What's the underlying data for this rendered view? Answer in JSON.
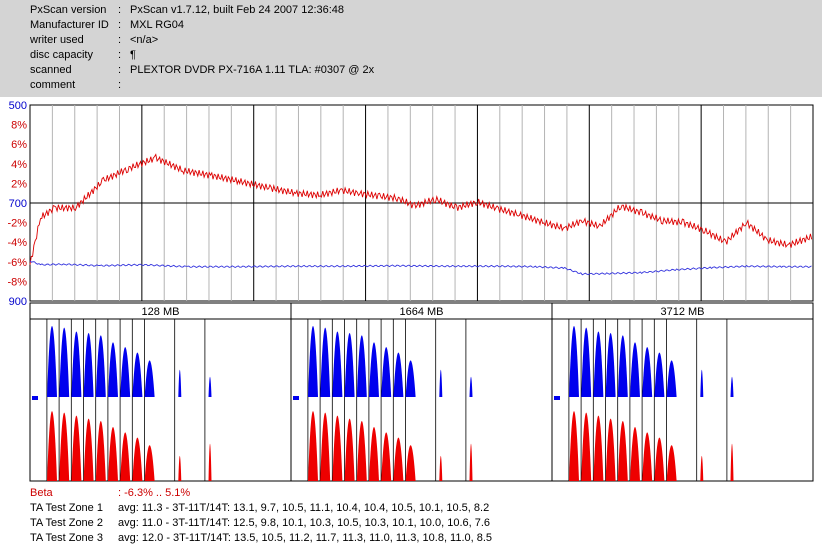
{
  "header": {
    "rows": [
      {
        "key": "PxScan version",
        "value": "PxScan v1.7.12, built Feb 24 2007 12:36:48"
      },
      {
        "key": "Manufacturer ID",
        "value": "MXL RG04"
      },
      {
        "key": "writer used",
        "value": "<n/a>"
      },
      {
        "key": "disc capacity",
        "value": "¶"
      },
      {
        "key": "scanned",
        "value": "PLEXTOR DVDR PX-716A 1.11 TLA: #0307 @ 2x"
      },
      {
        "key": "comment",
        "value": ""
      }
    ],
    "separator": ":"
  },
  "chart_data": [
    {
      "type": "line",
      "y_left_ticks": [
        {
          "label": "500",
          "color": "#0000cc"
        },
        {
          "label": "8%",
          "color": "#cc0000"
        },
        {
          "label": "6%",
          "color": "#cc0000"
        },
        {
          "label": "4%",
          "color": "#cc0000"
        },
        {
          "label": "2%",
          "color": "#cc0000"
        },
        {
          "label": "700",
          "color": "#0000cc"
        },
        {
          "label": "-2%",
          "color": "#cc0000"
        },
        {
          "label": "-4%",
          "color": "#cc0000"
        },
        {
          "label": "-6%",
          "color": "#cc0000"
        },
        {
          "label": "-8%",
          "color": "#cc0000"
        },
        {
          "label": "900",
          "color": "#0000cc"
        }
      ],
      "beta_ylim": [
        -10,
        10
      ],
      "jitter_ylim": [
        500,
        900
      ],
      "x_range": [
        0,
        4480
      ],
      "series": [
        {
          "color": "#dd0000",
          "x": [
            0,
            60,
            140,
            260,
            420,
            560,
            720,
            880,
            1040,
            1200,
            1380,
            1520,
            1660,
            1780,
            1880,
            2000,
            2100,
            2200,
            2320,
            2440,
            2560,
            2680,
            2800,
            2940,
            3060,
            3160,
            3260,
            3380,
            3500,
            3620,
            3740,
            3860,
            3980,
            4100,
            4220,
            4340,
            4480
          ],
          "y": [
            -6.3,
            -1.5,
            -0.5,
            -0.5,
            2.3,
            3.5,
            4.6,
            3.3,
            2.8,
            2.2,
            1.5,
            1.0,
            0.8,
            1.3,
            1.0,
            0.7,
            0.5,
            -0.3,
            0.4,
            -0.5,
            0.1,
            -0.6,
            -1.2,
            -2.0,
            -2.6,
            -1.8,
            -2.4,
            -0.3,
            -1.0,
            -1.8,
            -2.0,
            -2.8,
            -4.0,
            -2.0,
            -3.8,
            -4.3,
            -3.4
          ]
        },
        {
          "color": "#3333dd",
          "x": [
            0,
            60,
            200,
            400,
            640,
            900,
            1200,
            1500,
            1800,
            2100,
            2400,
            2700,
            2900,
            3060,
            3160,
            3300,
            3500,
            3700,
            3900,
            4100,
            4300,
            4480
          ],
          "y": [
            818,
            826,
            825,
            828,
            826,
            830,
            830,
            829,
            829,
            828,
            829,
            829,
            830,
            833,
            845,
            844,
            842,
            836,
            832,
            829,
            830,
            830
          ]
        }
      ]
    },
    {
      "type": "bar",
      "zones": [
        {
          "label": "128 MB",
          "blue_peaks": [
            0.91,
            0.89,
            0.84,
            0.82,
            0.79,
            0.7,
            0.64,
            0.57,
            0.47,
            0.35,
            0.26
          ],
          "red_peaks": [
            0.92,
            0.9,
            0.86,
            0.82,
            0.79,
            0.71,
            0.64,
            0.57,
            0.47,
            0.33,
            0.49
          ]
        },
        {
          "label": "1664 MB",
          "blue_peaks": [
            0.91,
            0.89,
            0.84,
            0.82,
            0.79,
            0.7,
            0.64,
            0.57,
            0.47,
            0.35,
            0.26
          ],
          "red_peaks": [
            0.92,
            0.9,
            0.86,
            0.82,
            0.79,
            0.71,
            0.64,
            0.57,
            0.47,
            0.33,
            0.49
          ]
        },
        {
          "label": "3712 MB",
          "blue_peaks": [
            0.91,
            0.89,
            0.84,
            0.82,
            0.79,
            0.7,
            0.64,
            0.57,
            0.47,
            0.35,
            0.26
          ],
          "red_peaks": [
            0.92,
            0.9,
            0.86,
            0.82,
            0.79,
            0.71,
            0.64,
            0.57,
            0.47,
            0.33,
            0.49
          ]
        }
      ]
    }
  ],
  "summary": {
    "beta": {
      "label": "Beta",
      "value": ": -6.3% .. 5.1%"
    },
    "zones": [
      {
        "label": "TA Test Zone 1",
        "value": "avg: 11.3 - 3T-11T/14T: 13.1, 9.7, 10.5, 11.1, 10.4, 10.4, 10.5, 10.1, 10.5, 8.2"
      },
      {
        "label": "TA Test Zone 2",
        "value": "avg: 11.0 - 3T-11T/14T: 12.5, 9.8, 10.1, 10.3, 10.5, 10.3, 10.1, 10.0, 10.6, 7.6"
      },
      {
        "label": "TA Test Zone 3",
        "value": "avg: 12.0 - 3T-11T/14T: 13.5, 10.5, 11.2, 11.7, 11.3, 11.0, 11.3, 10.8, 11.0, 8.5"
      }
    ]
  }
}
